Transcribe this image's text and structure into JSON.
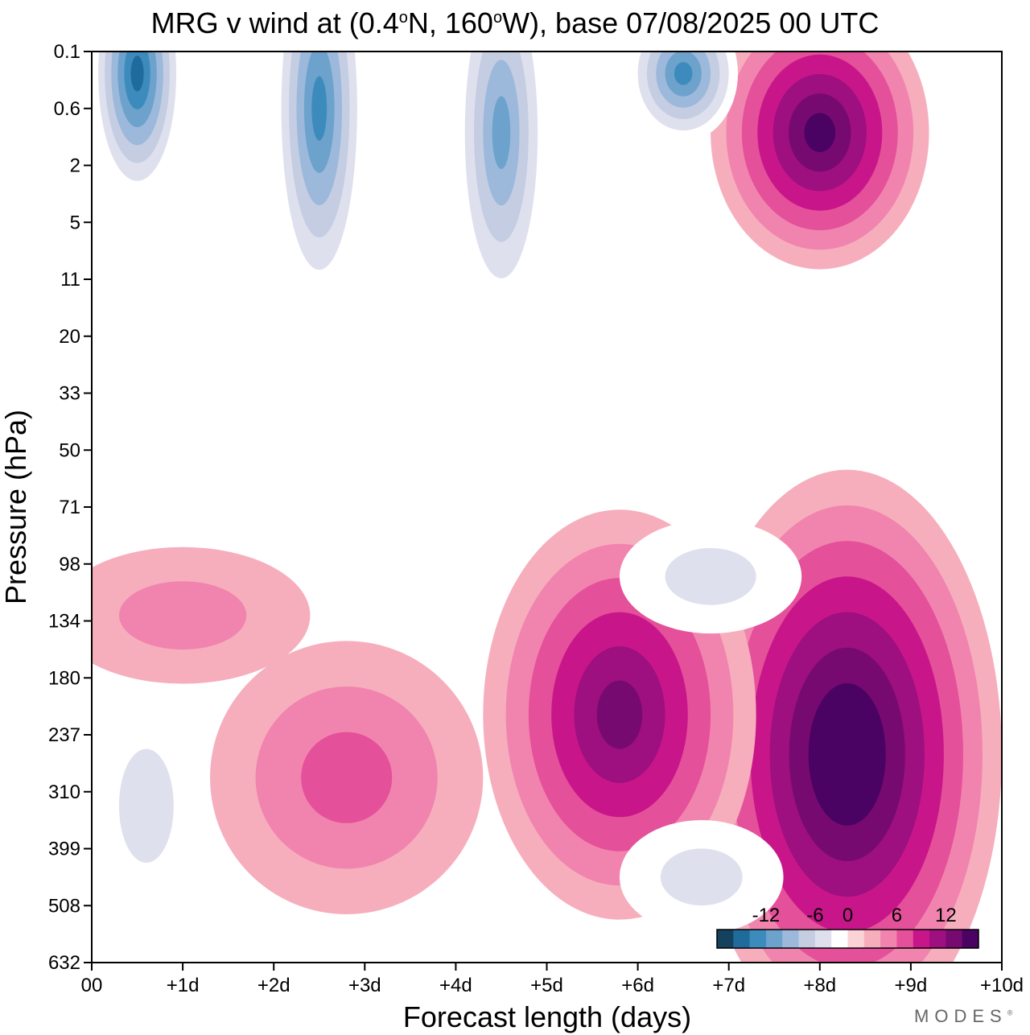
{
  "title": {
    "prefix": "MRG v wind at (0.4",
    "deg1": "o",
    "mid": "N, 160",
    "deg2": "o",
    "suffix": "W),  base 07/08/2025  00 UTC"
  },
  "chart_data": {
    "type": "heatmap",
    "title": "MRG v wind at (0.4°N, 160°W),  base 07/08/2025  00 UTC",
    "xlabel": "Forecast length (days)",
    "ylabel": "Pressure (hPa)",
    "x_ticks": [
      "00",
      "+1d",
      "+2d",
      "+3d",
      "+4d",
      "+5d",
      "+6d",
      "+7d",
      "+8d",
      "+9d",
      "+10d"
    ],
    "y_ticks": [
      "0.1",
      "0.6",
      "2",
      "5",
      "11",
      "20",
      "33",
      "50",
      "71",
      "98",
      "134",
      "180",
      "237",
      "310",
      "399",
      "508",
      "632"
    ],
    "xlim": [
      0,
      10
    ],
    "ylim_hPa": [
      0.1,
      632
    ],
    "colorbar": {
      "labels": [
        "-12",
        "-6",
        "0",
        "6",
        "12"
      ],
      "levels": [
        -16,
        -14,
        -12,
        -10,
        -8,
        -6,
        -4,
        -2,
        2,
        4,
        6,
        8,
        10,
        12,
        14,
        16
      ],
      "colors": [
        "#14415e",
        "#1f6c9c",
        "#3d8bbd",
        "#6ca2cc",
        "#9cb9db",
        "#c5cde3",
        "#dfe0ee",
        "#ffffff",
        "#fbd2d6",
        "#f6aebd",
        "#f184ae",
        "#e5509a",
        "#c8168a",
        "#9e0f80",
        "#770a70",
        "#4a0263"
      ]
    },
    "fields": [
      {
        "name": "upper-trop positive core",
        "day": 8.3,
        "hPa": 260,
        "peak": 17
      },
      {
        "name": "mid-day positive lobe",
        "day": 5.8,
        "hPa": 215,
        "peak": 12
      },
      {
        "name": "day-2.5 positive lobe",
        "day": 2.8,
        "hPa": 290,
        "peak": 6
      },
      {
        "name": "positive band 134 hPa",
        "day": 1.0,
        "hPa": 130,
        "peak": 4
      },
      {
        "name": "negative lobe 100 hPa",
        "day": 6.8,
        "hPa": 105,
        "peak": -5
      },
      {
        "name": "negative lobe 450 hPa",
        "day": 6.7,
        "hPa": 450,
        "peak": -5
      },
      {
        "name": "negative lobe 330 hPa",
        "day": 0.6,
        "hPa": 330,
        "peak": -5
      },
      {
        "name": "upper-strat positive",
        "day": 8.0,
        "hPa": 1.0,
        "peak": 14
      },
      {
        "name": "upper-strat negative day 0.5",
        "day": 0.5,
        "hPa": 0.2,
        "peak": -14
      },
      {
        "name": "upper-strat negative day 2.5",
        "day": 2.5,
        "hPa": 0.6,
        "peak": -12
      },
      {
        "name": "upper-strat negative day 4.5",
        "day": 4.5,
        "hPa": 1.0,
        "peak": -10
      },
      {
        "name": "upper-strat negative day 6.5",
        "day": 6.5,
        "hPa": 0.2,
        "peak": -12
      }
    ]
  },
  "logo": {
    "text": "MODES",
    "mark": "®"
  }
}
